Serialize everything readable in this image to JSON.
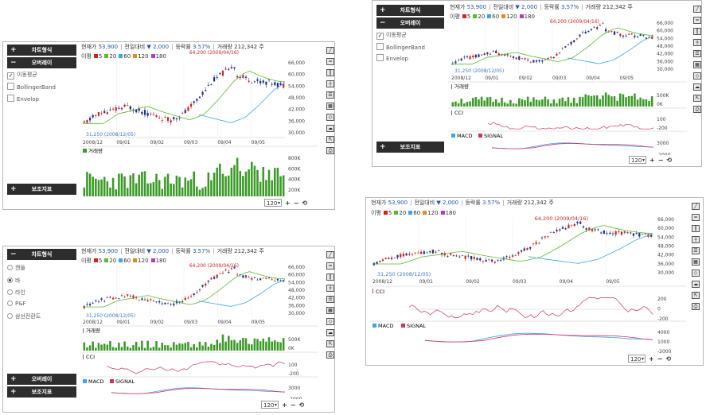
{
  "info": {
    "price_label": "현재가",
    "price": "53,900",
    "change_label": "전일대비",
    "change": "▼ 2,000",
    "rate_label": "등락률",
    "rate": "3.57%",
    "volume_label": "거래량",
    "volume": "212,342",
    "volume_unit": "주"
  },
  "menu": {
    "chart_type": "차트형식",
    "overlay": "오버레이",
    "sub_indicator": "보조지표"
  },
  "overlay_options": [
    "이동평균",
    "BollingerBand",
    "Envelop"
  ],
  "chart_type_options": [
    "캔들",
    "바",
    "라인",
    "P&F",
    "삼선전환도"
  ],
  "ma_legend": {
    "label": "이평",
    "periods": [
      "5",
      "20",
      "60",
      "120",
      "180"
    ]
  },
  "panes": {
    "volume": "거래량",
    "cci": "CCI",
    "macd": "MACD",
    "signal": "SIGNAL"
  },
  "annotations": {
    "high": "64,200 (2009/04/16)",
    "low": "31,250 (2008/12/05)"
  },
  "zoom_value": "120",
  "price_axis_a": [
    "66,000",
    "60,000",
    "54,000",
    "48,000",
    "42,000",
    "36,000",
    "30,000"
  ],
  "price_axis_b": [
    "66,000",
    "60,000",
    "54,000",
    "48,000",
    "42,000",
    "36,000",
    "30,000"
  ],
  "volume_axis_big": [
    "800K",
    "600K",
    "400K",
    "200K"
  ],
  "volume_axis_small": [
    "500K",
    "0K"
  ],
  "cci_axis": [
    "100",
    "-200"
  ],
  "cci_axis_big": [
    "200",
    "0",
    "-200"
  ],
  "macd_axis": [
    "3000",
    "-2000"
  ],
  "macd_axis_big": [
    "4000",
    "1000",
    "-2000"
  ],
  "x_ticks": [
    "2008/12",
    "09/01",
    "09/02",
    "09/03",
    "09/04",
    "09/05"
  ],
  "colors": {
    "up": "#d42020",
    "down": "#1c2f8c",
    "ma5": "#d42020",
    "ma20": "#5aba2a",
    "ma60": "#3aa8e0",
    "ma120": "#e88a1a",
    "ma180": "#b040c0",
    "volume": "#3a9a26",
    "cci": "#d0306a",
    "macd": "#3aa8e0",
    "signal": "#d0306a"
  },
  "chart_data": {
    "type": "candlestick",
    "title": "",
    "x": [
      "2008/12",
      "09/01",
      "09/02",
      "09/03",
      "09/04",
      "09/05"
    ],
    "price_range": [
      30000,
      66000
    ],
    "price_points": [
      36500,
      41000,
      42500,
      44500,
      42000,
      40000,
      38000,
      41000,
      48000,
      56000,
      61000,
      58000,
      56000,
      55500,
      54000
    ],
    "high": {
      "value": 64200,
      "date": "2009/04/16"
    },
    "low": {
      "value": 31250,
      "date": "2008/12/05"
    },
    "volume_range": [
      0,
      800000
    ],
    "moving_averages": [
      "5",
      "20",
      "60",
      "120",
      "180"
    ]
  }
}
